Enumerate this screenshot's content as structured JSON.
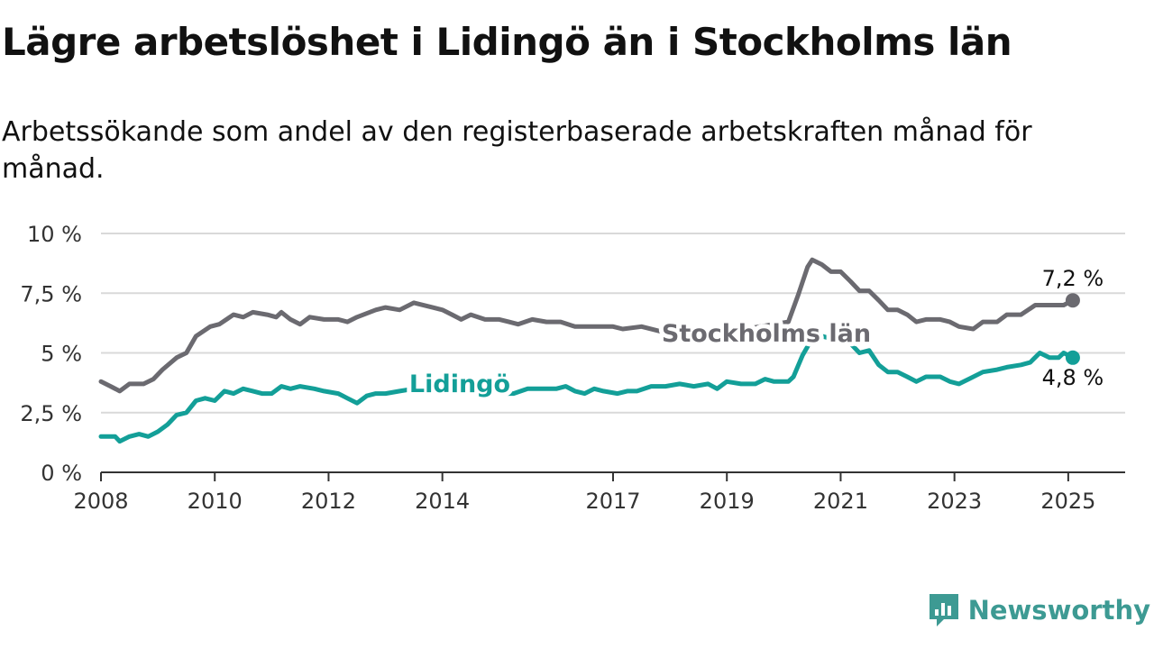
{
  "header": {
    "title": "Lägre arbetslöshet i Lidingö än i Stockholms län",
    "subtitle": "Arbetssökande som andel av den registerbaserade arbetskraften månad för månad."
  },
  "brand": {
    "name": "Newsworthy",
    "color": "#3d9a93"
  },
  "chart_data": {
    "type": "line",
    "x_unit": "year",
    "xlim": [
      2008,
      2026
    ],
    "ylim": [
      0,
      10
    ],
    "y_ticks": [
      0,
      2.5,
      5,
      7.5,
      10
    ],
    "y_tick_labels": [
      "0 %",
      "2,5 %",
      "5 %",
      "7,5 %",
      "10 %"
    ],
    "x_ticks": [
      2008,
      2010,
      2012,
      2014,
      2017,
      2019,
      2021,
      2023,
      2025
    ],
    "x_tick_labels": [
      "2008",
      "2010",
      "2012",
      "2014",
      "2017",
      "2019",
      "2021",
      "2023",
      "2025"
    ],
    "grid": "horizontal",
    "series": [
      {
        "name": "Stockholms län",
        "color": "#6b6a70",
        "end_label": "7,2 %",
        "points": [
          [
            2008.0,
            3.8
          ],
          [
            2008.17,
            3.6
          ],
          [
            2008.33,
            3.4
          ],
          [
            2008.5,
            3.7
          ],
          [
            2008.75,
            3.7
          ],
          [
            2008.92,
            3.9
          ],
          [
            2009.08,
            4.3
          ],
          [
            2009.33,
            4.8
          ],
          [
            2009.5,
            5.0
          ],
          [
            2009.67,
            5.7
          ],
          [
            2009.92,
            6.1
          ],
          [
            2010.08,
            6.2
          ],
          [
            2010.33,
            6.6
          ],
          [
            2010.5,
            6.5
          ],
          [
            2010.67,
            6.7
          ],
          [
            2010.92,
            6.6
          ],
          [
            2011.08,
            6.5
          ],
          [
            2011.17,
            6.7
          ],
          [
            2011.33,
            6.4
          ],
          [
            2011.5,
            6.2
          ],
          [
            2011.67,
            6.5
          ],
          [
            2011.92,
            6.4
          ],
          [
            2012.17,
            6.4
          ],
          [
            2012.33,
            6.3
          ],
          [
            2012.5,
            6.5
          ],
          [
            2012.83,
            6.8
          ],
          [
            2013.0,
            6.9
          ],
          [
            2013.25,
            6.8
          ],
          [
            2013.5,
            7.1
          ],
          [
            2013.83,
            6.9
          ],
          [
            2014.0,
            6.8
          ],
          [
            2014.17,
            6.6
          ],
          [
            2014.33,
            6.4
          ],
          [
            2014.5,
            6.6
          ],
          [
            2014.75,
            6.4
          ],
          [
            2015.0,
            6.4
          ],
          [
            2015.17,
            6.3
          ],
          [
            2015.33,
            6.2
          ],
          [
            2015.58,
            6.4
          ],
          [
            2015.83,
            6.3
          ],
          [
            2016.08,
            6.3
          ],
          [
            2016.33,
            6.1
          ],
          [
            2016.58,
            6.1
          ],
          [
            2016.83,
            6.1
          ],
          [
            2017.0,
            6.1
          ],
          [
            2017.17,
            6.0
          ],
          [
            2017.5,
            6.1
          ],
          [
            2017.83,
            5.9
          ],
          [
            2018.17,
            5.8
          ],
          [
            2018.5,
            5.9
          ],
          [
            2018.83,
            5.9
          ],
          [
            2019.08,
            5.9
          ],
          [
            2019.33,
            6.0
          ],
          [
            2019.58,
            6.1
          ],
          [
            2019.83,
            6.2
          ],
          [
            2020.08,
            6.3
          ],
          [
            2020.25,
            7.4
          ],
          [
            2020.42,
            8.6
          ],
          [
            2020.5,
            8.9
          ],
          [
            2020.67,
            8.7
          ],
          [
            2020.83,
            8.4
          ],
          [
            2021.0,
            8.4
          ],
          [
            2021.17,
            8.0
          ],
          [
            2021.33,
            7.6
          ],
          [
            2021.5,
            7.6
          ],
          [
            2021.67,
            7.2
          ],
          [
            2021.83,
            6.8
          ],
          [
            2022.0,
            6.8
          ],
          [
            2022.17,
            6.6
          ],
          [
            2022.33,
            6.3
          ],
          [
            2022.5,
            6.4
          ],
          [
            2022.75,
            6.4
          ],
          [
            2022.92,
            6.3
          ],
          [
            2023.08,
            6.1
          ],
          [
            2023.33,
            6.0
          ],
          [
            2023.5,
            6.3
          ],
          [
            2023.75,
            6.3
          ],
          [
            2023.92,
            6.6
          ],
          [
            2024.17,
            6.6
          ],
          [
            2024.42,
            7.0
          ],
          [
            2024.67,
            7.0
          ],
          [
            2024.92,
            7.0
          ],
          [
            2025.08,
            7.2
          ]
        ]
      },
      {
        "name": "Lidingö",
        "color": "#139f98",
        "end_label": "4,8 %",
        "points": [
          [
            2008.0,
            1.5
          ],
          [
            2008.25,
            1.5
          ],
          [
            2008.33,
            1.3
          ],
          [
            2008.5,
            1.5
          ],
          [
            2008.67,
            1.6
          ],
          [
            2008.83,
            1.5
          ],
          [
            2009.0,
            1.7
          ],
          [
            2009.17,
            2.0
          ],
          [
            2009.33,
            2.4
          ],
          [
            2009.5,
            2.5
          ],
          [
            2009.67,
            3.0
          ],
          [
            2009.83,
            3.1
          ],
          [
            2010.0,
            3.0
          ],
          [
            2010.17,
            3.4
          ],
          [
            2010.33,
            3.3
          ],
          [
            2010.5,
            3.5
          ],
          [
            2010.67,
            3.4
          ],
          [
            2010.83,
            3.3
          ],
          [
            2011.0,
            3.3
          ],
          [
            2011.17,
            3.6
          ],
          [
            2011.33,
            3.5
          ],
          [
            2011.5,
            3.6
          ],
          [
            2011.75,
            3.5
          ],
          [
            2011.92,
            3.4
          ],
          [
            2012.17,
            3.3
          ],
          [
            2012.33,
            3.1
          ],
          [
            2012.5,
            2.9
          ],
          [
            2012.67,
            3.2
          ],
          [
            2012.83,
            3.3
          ],
          [
            2013.0,
            3.3
          ],
          [
            2013.25,
            3.4
          ],
          [
            2013.5,
            3.5
          ],
          [
            2013.75,
            3.4
          ],
          [
            2014.0,
            3.5
          ],
          [
            2014.25,
            3.5
          ],
          [
            2014.5,
            3.5
          ],
          [
            2014.75,
            3.4
          ],
          [
            2015.0,
            3.3
          ],
          [
            2015.25,
            3.3
          ],
          [
            2015.5,
            3.5
          ],
          [
            2015.75,
            3.5
          ],
          [
            2016.0,
            3.5
          ],
          [
            2016.17,
            3.6
          ],
          [
            2016.33,
            3.4
          ],
          [
            2016.5,
            3.3
          ],
          [
            2016.67,
            3.5
          ],
          [
            2016.83,
            3.4
          ],
          [
            2017.08,
            3.3
          ],
          [
            2017.25,
            3.4
          ],
          [
            2017.42,
            3.4
          ],
          [
            2017.67,
            3.6
          ],
          [
            2017.92,
            3.6
          ],
          [
            2018.17,
            3.7
          ],
          [
            2018.42,
            3.6
          ],
          [
            2018.67,
            3.7
          ],
          [
            2018.83,
            3.5
          ],
          [
            2019.0,
            3.8
          ],
          [
            2019.25,
            3.7
          ],
          [
            2019.5,
            3.7
          ],
          [
            2019.67,
            3.9
          ],
          [
            2019.83,
            3.8
          ],
          [
            2020.08,
            3.8
          ],
          [
            2020.17,
            4.0
          ],
          [
            2020.33,
            4.9
          ],
          [
            2020.5,
            5.6
          ],
          [
            2020.67,
            5.7
          ],
          [
            2020.83,
            5.6
          ],
          [
            2021.0,
            5.8
          ],
          [
            2021.17,
            5.4
          ],
          [
            2021.33,
            5.0
          ],
          [
            2021.5,
            5.1
          ],
          [
            2021.67,
            4.5
          ],
          [
            2021.83,
            4.2
          ],
          [
            2022.0,
            4.2
          ],
          [
            2022.17,
            4.0
          ],
          [
            2022.33,
            3.8
          ],
          [
            2022.5,
            4.0
          ],
          [
            2022.75,
            4.0
          ],
          [
            2022.92,
            3.8
          ],
          [
            2023.08,
            3.7
          ],
          [
            2023.25,
            3.9
          ],
          [
            2023.5,
            4.2
          ],
          [
            2023.75,
            4.3
          ],
          [
            2023.92,
            4.4
          ],
          [
            2024.17,
            4.5
          ],
          [
            2024.33,
            4.6
          ],
          [
            2024.5,
            5.0
          ],
          [
            2024.67,
            4.8
          ],
          [
            2024.83,
            4.8
          ],
          [
            2024.92,
            5.0
          ],
          [
            2025.08,
            4.8
          ]
        ]
      }
    ]
  }
}
